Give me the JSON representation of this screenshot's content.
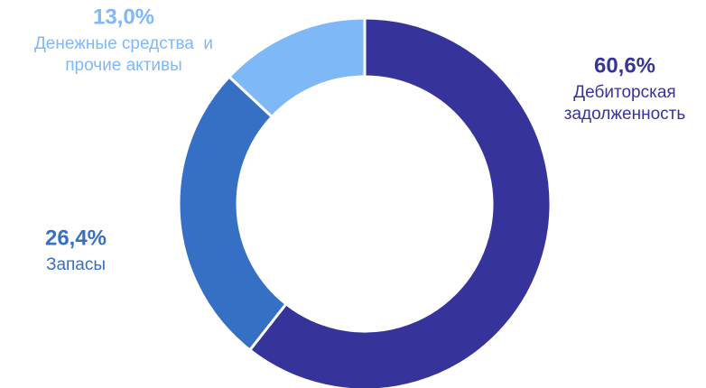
{
  "chart_data": {
    "type": "pie",
    "donut": true,
    "slices": [
      {
        "label_lines": [
          "Дебиторская",
          "задолженность"
        ],
        "value": 60.6,
        "value_label": "60,6%",
        "color": "#36349A"
      },
      {
        "label_lines": [
          "Запасы"
        ],
        "value": 26.4,
        "value_label": "26,4%",
        "color": "#3670C4"
      },
      {
        "label_lines": [
          "Денежные средства  и",
          "прочие активы"
        ],
        "value": 13.0,
        "value_label": "13,0%",
        "color": "#7FB8F7"
      }
    ],
    "start_angle_deg": 0,
    "direction": "clockwise",
    "separator_color": "#ffffff"
  }
}
